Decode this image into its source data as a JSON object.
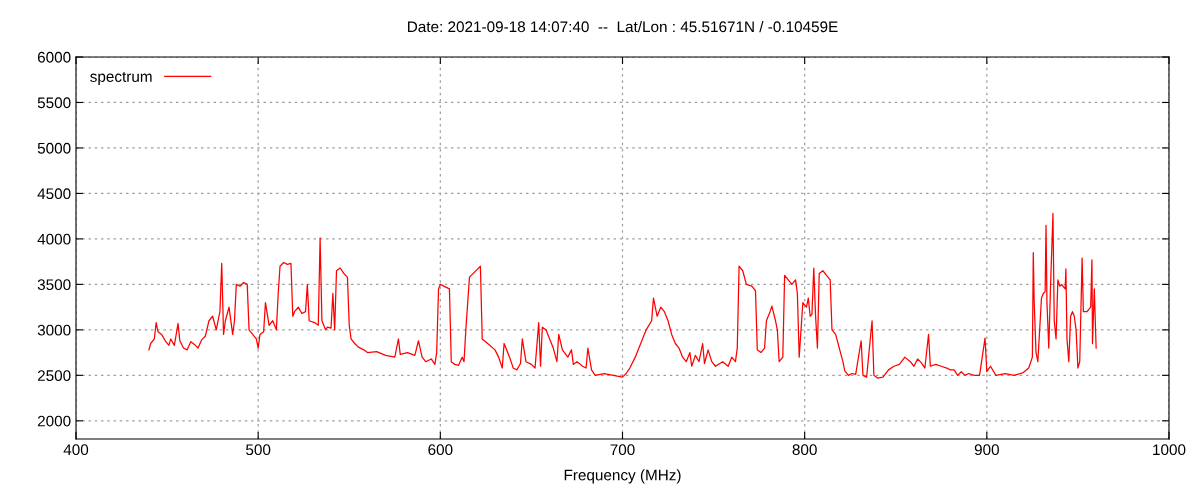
{
  "chart_data": {
    "type": "line",
    "title": "Date: 2021-09-18 14:07:40  --  Lat/Lon : 45.51671N / -0.10459E",
    "xlabel": "Frequency (MHz)",
    "xlim": [
      400,
      1000
    ],
    "xticks": [
      400,
      500,
      600,
      700,
      800,
      900,
      1000
    ],
    "ylim": [
      1800,
      6000
    ],
    "yticks": [
      2000,
      2500,
      3000,
      3500,
      4000,
      4500,
      5000,
      5500,
      6000
    ],
    "grid": true,
    "legend": "top left",
    "marker": "none",
    "line_style": "solid",
    "series": [
      {
        "name": "spectrum",
        "color": "#ff0000",
        "x": [
          440,
          441,
          443,
          444,
          445,
          447,
          449,
          451,
          452,
          454,
          456,
          457,
          459,
          461,
          463,
          465,
          467,
          469,
          471,
          473,
          475,
          477,
          479,
          480,
          481,
          482,
          484,
          486,
          487,
          488,
          490,
          492,
          494,
          495,
          497,
          499,
          500,
          501,
          503,
          504,
          506,
          508,
          510,
          511,
          512,
          514,
          516,
          518,
          519,
          520,
          522,
          524,
          526,
          527,
          528,
          531,
          533,
          534,
          535,
          537,
          538,
          540,
          541,
          542,
          543,
          545,
          547,
          549,
          550,
          551,
          553,
          555,
          558,
          560,
          565,
          570,
          575,
          577,
          578,
          582,
          586,
          588,
          590,
          592,
          595,
          597,
          598,
          599,
          600,
          603,
          605,
          606,
          608,
          610,
          612,
          613,
          614,
          616,
          620,
          622,
          623,
          626,
          630,
          632,
          634,
          635,
          638,
          640,
          642,
          644,
          645,
          647,
          650,
          652,
          654,
          655,
          656,
          658,
          660,
          662,
          664,
          665,
          667,
          670,
          672,
          673,
          675,
          677,
          678,
          680,
          681,
          683,
          685,
          690,
          695,
          700,
          702,
          704,
          707,
          710,
          713,
          716,
          717,
          719,
          721,
          723,
          725,
          727,
          729,
          731,
          733,
          735,
          737,
          738,
          740,
          742,
          744,
          745,
          747,
          749,
          751,
          755,
          758,
          760,
          762,
          763,
          764,
          766,
          768,
          771,
          773,
          774,
          776,
          778,
          779,
          781,
          782,
          784,
          785,
          786,
          788,
          789,
          791,
          793,
          795,
          796,
          797,
          799,
          801,
          802,
          803,
          804,
          805,
          806,
          807,
          808,
          810,
          812,
          814,
          815,
          817,
          819,
          821,
          822,
          824,
          826,
          828,
          831,
          832,
          834,
          837,
          838,
          840,
          843,
          846,
          849,
          852,
          855,
          858,
          860,
          862,
          864,
          866,
          868,
          869,
          872,
          875,
          878,
          880,
          882,
          884,
          886,
          888,
          890,
          893,
          896,
          899,
          900,
          902,
          905,
          910,
          915,
          920,
          923,
          925,
          925.5,
          926,
          927,
          928,
          930,
          931,
          932,
          932.5,
          933,
          934,
          935,
          936.3,
          937,
          938,
          939,
          940,
          941,
          943,
          943.4,
          944,
          945,
          946,
          947,
          948,
          949,
          950,
          951,
          952.3,
          953,
          955,
          957,
          957.7,
          958,
          959,
          960
        ],
        "values": [
          2780,
          2850,
          2900,
          3080,
          2980,
          2950,
          2880,
          2830,
          2900,
          2830,
          3070,
          2880,
          2800,
          2780,
          2870,
          2840,
          2800,
          2890,
          2930,
          3100,
          3150,
          3000,
          3200,
          3730,
          2950,
          3100,
          3250,
          2950,
          3100,
          3500,
          3480,
          3520,
          3500,
          3000,
          2950,
          2900,
          2800,
          2950,
          2980,
          3300,
          3050,
          3100,
          3000,
          3400,
          3700,
          3740,
          3720,
          3730,
          3150,
          3200,
          3250,
          3180,
          3200,
          3500,
          3100,
          3080,
          3050,
          4010,
          3100,
          3000,
          3030,
          3020,
          3400,
          3000,
          3650,
          3680,
          3620,
          3580,
          3050,
          2900,
          2850,
          2810,
          2780,
          2750,
          2760,
          2720,
          2700,
          2900,
          2730,
          2750,
          2720,
          2880,
          2700,
          2650,
          2680,
          2620,
          2750,
          3450,
          3500,
          3470,
          3450,
          2650,
          2620,
          2610,
          2700,
          2650,
          3000,
          3580,
          3660,
          3700,
          2900,
          2850,
          2780,
          2700,
          2580,
          2850,
          2700,
          2580,
          2560,
          2630,
          2900,
          2650,
          2620,
          2580,
          3080,
          2600,
          3030,
          3000,
          2900,
          2800,
          2650,
          2950,
          2780,
          2700,
          2780,
          2620,
          2650,
          2620,
          2600,
          2580,
          2800,
          2560,
          2500,
          2520,
          2500,
          2480,
          2520,
          2580,
          2700,
          2850,
          3000,
          3100,
          3350,
          3150,
          3250,
          3200,
          3100,
          2950,
          2850,
          2800,
          2700,
          2650,
          2750,
          2600,
          2720,
          2650,
          2850,
          2630,
          2780,
          2650,
          2600,
          2650,
          2600,
          2700,
          2650,
          2800,
          3700,
          3650,
          3500,
          3480,
          3430,
          2780,
          2750,
          2800,
          3100,
          3200,
          3260,
          3100,
          3000,
          2650,
          2700,
          3600,
          3550,
          3500,
          3550,
          3400,
          2700,
          3300,
          3250,
          3350,
          3150,
          3170,
          3680,
          3150,
          2800,
          3620,
          3650,
          3600,
          3550,
          3000,
          2950,
          2800,
          2650,
          2550,
          2500,
          2520,
          2510,
          2880,
          2500,
          2480,
          3100,
          2500,
          2470,
          2480,
          2560,
          2600,
          2620,
          2700,
          2650,
          2600,
          2680,
          2640,
          2580,
          2950,
          2600,
          2620,
          2600,
          2580,
          2560,
          2560,
          2500,
          2540,
          2500,
          2520,
          2500,
          2500,
          2910,
          2540,
          2600,
          2500,
          2520,
          2500,
          2530,
          2580,
          2700,
          3850,
          3300,
          2750,
          2650,
          3350,
          3400,
          3420,
          4150,
          3300,
          2800,
          3500,
          4280,
          3100,
          2900,
          3550,
          3480,
          3500,
          3450,
          3670,
          2900,
          2650,
          3150,
          3200,
          3150,
          3000,
          2580,
          2650,
          3790,
          3200,
          3200,
          3250,
          3770,
          2850,
          3450,
          2800
        ]
      }
    ]
  }
}
